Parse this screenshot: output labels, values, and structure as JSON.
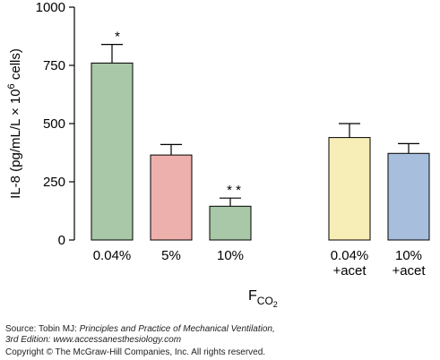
{
  "chart_data": {
    "type": "bar",
    "ylabel_main": "IL-8 (pg/mL/L × 10",
    "ylabel_sup": "6",
    "ylabel_tail": " cells)",
    "xlabel_main": "F",
    "xlabel_sub": "CO",
    "xlabel_sub2": "2",
    "ylim": [
      0,
      1000
    ],
    "yticks": [
      "0",
      "250",
      "500",
      "750",
      "1000"
    ],
    "ytick_values": [
      0,
      250,
      500,
      750,
      1000
    ],
    "categories": [
      {
        "line1": "0.04%",
        "line2": ""
      },
      {
        "line1": "5%",
        "line2": ""
      },
      {
        "line1": "10%",
        "line2": ""
      },
      {
        "line1": "0.04%",
        "line2": "+acet"
      },
      {
        "line1": "10%",
        "line2": "+acet"
      }
    ],
    "values": [
      760,
      365,
      145,
      440,
      372
    ],
    "errors": [
      80,
      45,
      35,
      60,
      42
    ],
    "annotations": [
      "*",
      "",
      "* *",
      "",
      ""
    ],
    "colors": [
      "#a8c8a8",
      "#eeb0ac",
      "#a8c8a8",
      "#f7edb6",
      "#a8bedd"
    ],
    "grid": false
  },
  "source": {
    "prefix": "Source: Tobin MJ: ",
    "book_title": "Principles and Practice of Mechanical Ventilation,",
    "edition_line": "3rd Edition: ",
    "url": "www.accessanesthesiology.com",
    "copyright": "Copyright © The McGraw-Hill Companies, Inc. All rights reserved."
  }
}
